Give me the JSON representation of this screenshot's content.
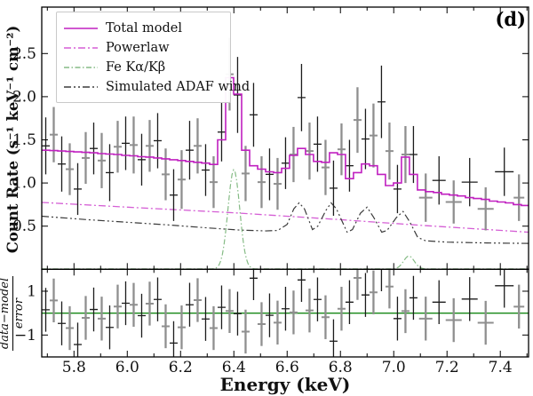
{
  "figure": {
    "panel_label": "(d)"
  },
  "chart_data": {
    "type": "line",
    "title": "",
    "xlabel": "Energy (keV)",
    "ylabel_main": "Count Rate (s⁻¹ keV⁻¹ cm⁻²)",
    "ylabel_residual_numerator": "data−model",
    "ylabel_residual_denominator": "error",
    "panel_label": "(d)",
    "x_range": [
      5.679,
      7.506
    ],
    "y_range_main": [
      0,
      3.038
    ],
    "y_range_residual": [
      -2,
      2
    ],
    "x_major_ticks": [
      5.8,
      6.0,
      6.2,
      6.4,
      6.6,
      6.8,
      7.0,
      7.2,
      7.4
    ],
    "x_minor_ticks": [
      5.7,
      5.9,
      6.1,
      6.3,
      6.5,
      6.7,
      6.9,
      7.1,
      7.3,
      7.5
    ],
    "y_major_ticks_main": [
      0.5,
      1.0,
      1.5,
      2.0,
      2.5
    ],
    "y_major_ticks_residual": [
      -1,
      1
    ],
    "grid": false,
    "legend_position": "upper-left",
    "colors": {
      "total_model": "#c020c0",
      "powerlaw": "#d55fd5",
      "fe_line": "#85bb85",
      "adaf_wind": "#3b3b3b",
      "data_black": "#1c1c1c",
      "data_gray": "#8f8f8f",
      "residual_zero_line": "#168716",
      "axis": "#000000"
    },
    "legend": {
      "items": [
        {
          "label": "Total model",
          "color": "#c020c0",
          "dash": ""
        },
        {
          "label": "Powerlaw",
          "color": "#d55fd5",
          "dash": "8 3 2 3"
        },
        {
          "label": "Fe Kα/Kβ",
          "color": "#85bb85",
          "dash": "6 2.5 1.5 2.5"
        },
        {
          "label": "Simulated ADAF wind",
          "color": "#3b3b3b",
          "dash": "8 3 2 3 2 3"
        }
      ]
    },
    "series": {
      "total_model_steps": {
        "comment": "histogram model, bin centers start+k*step (keV), values in counts s-1 keV-1 cm-2",
        "start": 5.694,
        "step": 0.03,
        "values": [
          1.38,
          1.375,
          1.37,
          1.365,
          1.36,
          1.355,
          1.35,
          1.34,
          1.335,
          1.33,
          1.32,
          1.315,
          1.305,
          1.3,
          1.29,
          1.28,
          1.27,
          1.26,
          1.25,
          1.24,
          1.23,
          1.215,
          1.5,
          2.22,
          2.03,
          1.38,
          1.2,
          1.16,
          1.13,
          1.12,
          1.17,
          1.32,
          1.4,
          1.33,
          1.25,
          1.24,
          1.35,
          1.33,
          1.05,
          1.12,
          1.22,
          1.2,
          1.1,
          0.97,
          1.0,
          1.3,
          1.1,
          0.92,
          0.9,
          0.89,
          0.87,
          0.86,
          0.85,
          0.83,
          0.82,
          0.81,
          0.79,
          0.78,
          0.77,
          0.75,
          0.74
        ]
      },
      "powerlaw": {
        "x": [
          5.679,
          6.0,
          6.4,
          6.8,
          7.1,
          7.506
        ],
        "y": [
          0.775,
          0.72,
          0.655,
          0.575,
          0.51,
          0.43
        ]
      },
      "fe_line": {
        "baseline": 0.004,
        "gaussians": [
          {
            "center": 6.4,
            "sigma": 0.022,
            "amplitude": 1.15
          },
          {
            "center": 7.057,
            "sigma": 0.02,
            "amplitude": 0.15
          }
        ]
      },
      "adaf_wind": {
        "x": [
          5.679,
          5.85,
          6.0,
          6.15,
          6.3,
          6.42,
          6.52,
          6.565,
          6.6,
          6.625,
          6.645,
          6.665,
          6.695,
          6.715,
          6.745,
          6.765,
          6.785,
          6.825,
          6.845,
          6.875,
          6.9,
          6.925,
          6.955,
          6.975,
          7.01,
          7.035,
          7.06,
          7.09,
          7.12,
          7.2,
          7.35,
          7.506
        ],
        "y": [
          0.615,
          0.575,
          0.545,
          0.515,
          0.48,
          0.455,
          0.445,
          0.45,
          0.52,
          0.7,
          0.77,
          0.7,
          0.46,
          0.5,
          0.68,
          0.77,
          0.7,
          0.43,
          0.46,
          0.65,
          0.72,
          0.6,
          0.43,
          0.45,
          0.6,
          0.67,
          0.55,
          0.37,
          0.33,
          0.315,
          0.305,
          0.3
        ]
      }
    },
    "data_points": {
      "comment": "[energy_keV, xerr, count_rate, yerr, gray_flag]",
      "points": [
        [
          5.694,
          0.015,
          1.43,
          0.33,
          0
        ],
        [
          5.724,
          0.015,
          1.56,
          0.32,
          1
        ],
        [
          5.754,
          0.015,
          1.22,
          0.32,
          0
        ],
        [
          5.784,
          0.015,
          1.16,
          0.3,
          1
        ],
        [
          5.814,
          0.015,
          0.93,
          0.3,
          0
        ],
        [
          5.844,
          0.015,
          1.29,
          0.3,
          1
        ],
        [
          5.874,
          0.015,
          1.4,
          0.3,
          0
        ],
        [
          5.904,
          0.015,
          1.26,
          0.32,
          1
        ],
        [
          5.934,
          0.015,
          1.12,
          0.33,
          0
        ],
        [
          5.964,
          0.015,
          1.42,
          0.3,
          1
        ],
        [
          5.994,
          0.015,
          1.46,
          0.31,
          0
        ],
        [
          6.024,
          0.015,
          1.44,
          0.33,
          1
        ],
        [
          6.054,
          0.015,
          1.27,
          0.3,
          0
        ],
        [
          6.084,
          0.015,
          1.43,
          0.3,
          1
        ],
        [
          6.114,
          0.015,
          1.49,
          0.32,
          0
        ],
        [
          6.144,
          0.015,
          1.1,
          0.3,
          1
        ],
        [
          6.174,
          0.015,
          0.86,
          0.3,
          0
        ],
        [
          6.204,
          0.015,
          1.04,
          0.34,
          1
        ],
        [
          6.234,
          0.015,
          1.38,
          0.34,
          0
        ],
        [
          6.264,
          0.015,
          1.43,
          0.32,
          1
        ],
        [
          6.294,
          0.015,
          1.15,
          0.3,
          0
        ],
        [
          6.324,
          0.015,
          1.01,
          0.3,
          1
        ],
        [
          6.354,
          0.015,
          1.59,
          0.34,
          0
        ],
        [
          6.384,
          0.015,
          2.26,
          0.42,
          1
        ],
        [
          6.414,
          0.015,
          2.02,
          0.44,
          0
        ],
        [
          6.444,
          0.015,
          1.11,
          0.32,
          1
        ],
        [
          6.474,
          0.015,
          1.79,
          0.37,
          0
        ],
        [
          6.504,
          0.015,
          1.01,
          0.3,
          1
        ],
        [
          6.534,
          0.015,
          1.1,
          0.3,
          0
        ],
        [
          6.564,
          0.015,
          0.99,
          0.3,
          1
        ],
        [
          6.594,
          0.015,
          1.23,
          0.3,
          0
        ],
        [
          6.624,
          0.015,
          1.33,
          0.32,
          1
        ],
        [
          6.654,
          0.015,
          1.99,
          0.39,
          0
        ],
        [
          6.684,
          0.015,
          1.37,
          0.33,
          1
        ],
        [
          6.714,
          0.015,
          1.45,
          0.32,
          0
        ],
        [
          6.744,
          0.015,
          1.18,
          0.32,
          1
        ],
        [
          6.774,
          0.015,
          0.94,
          0.32,
          0
        ],
        [
          6.804,
          0.015,
          1.39,
          0.3,
          1
        ],
        [
          6.834,
          0.015,
          1.2,
          0.3,
          0
        ],
        [
          6.864,
          0.015,
          1.73,
          0.38,
          1
        ],
        [
          6.894,
          0.015,
          1.51,
          0.35,
          0
        ],
        [
          6.924,
          0.015,
          1.55,
          0.37,
          1
        ],
        [
          6.954,
          0.015,
          1.94,
          0.42,
          0
        ],
        [
          6.984,
          0.015,
          1.37,
          0.33,
          1
        ],
        [
          7.014,
          0.015,
          0.93,
          0.28,
          0
        ],
        [
          7.044,
          0.015,
          1.33,
          0.33,
          1
        ],
        [
          7.074,
          0.015,
          1.33,
          0.33,
          0
        ],
        [
          7.12,
          0.025,
          0.83,
          0.28,
          1
        ],
        [
          7.17,
          0.025,
          1.03,
          0.28,
          0
        ],
        [
          7.225,
          0.03,
          0.78,
          0.25,
          1
        ],
        [
          7.285,
          0.03,
          1.01,
          0.28,
          0
        ],
        [
          7.345,
          0.03,
          0.7,
          0.25,
          1
        ],
        [
          7.415,
          0.035,
          1.13,
          0.28,
          0
        ],
        [
          7.47,
          0.02,
          0.83,
          0.27,
          1
        ]
      ]
    },
    "residual_definition": "(data - model) / error, error bars are ±1"
  }
}
